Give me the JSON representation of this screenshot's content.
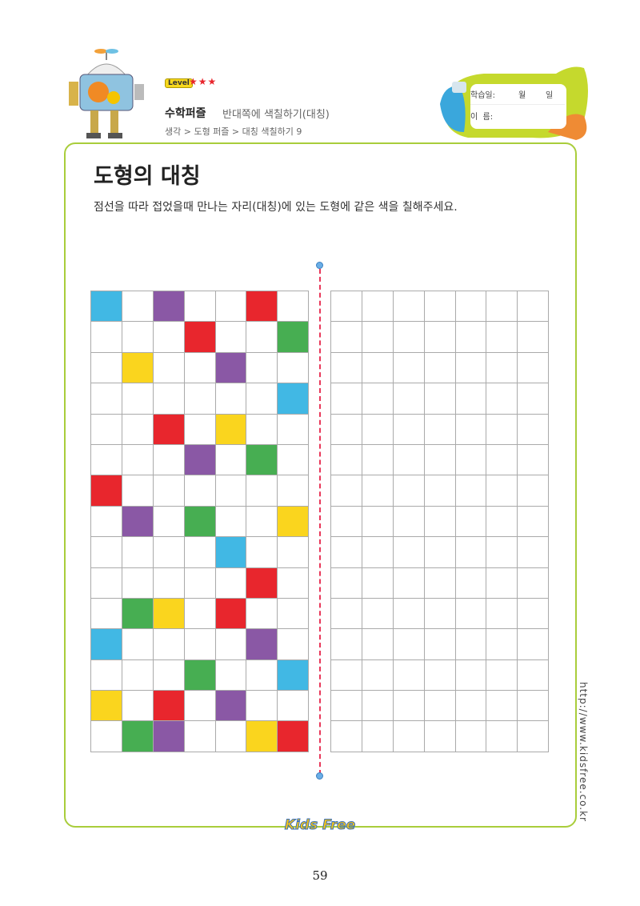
{
  "header": {
    "level_label": "Level",
    "stars": "★★★",
    "subject": "수학퍼즐",
    "subtitle": "반대쪽에 색칠하기(대칭)",
    "breadcrumb": "생각 > 도형 퍼즐 > 대칭 색칠하기 9"
  },
  "datebox": {
    "date_label": "학습일:",
    "month": "월",
    "day": "일",
    "name_label": "이  름:"
  },
  "main": {
    "title": "도형의 대칭",
    "instruction": "점선을 따라 접었을때 만나는 자리(대칭)에 있는 도형에 같은 색을 칠해주세요."
  },
  "colors": {
    "B": "#41b8e4",
    "P": "#8a58a5",
    "R": "#e8262d",
    "G": "#47ae52",
    "Y": "#fad51e",
    "frame": "#a9cd3b",
    "fold": "#e8385a"
  },
  "grid_left": [
    "B.P..R.",
    "...R..G",
    ".Y..P..",
    "......B",
    "..R.Y..",
    "...P.G.",
    "R......",
    ".P.G..Y",
    "....B..",
    ".....R.",
    ".GY.R..",
    "B....P.",
    "...G..B",
    "Y.R.P..",
    ".GP..YR"
  ],
  "grid_right_rows": 15,
  "grid_cols": 7,
  "footer": {
    "url": "http://www.kidsfree.co.kr",
    "logo": "Kids Free",
    "page": "59"
  }
}
